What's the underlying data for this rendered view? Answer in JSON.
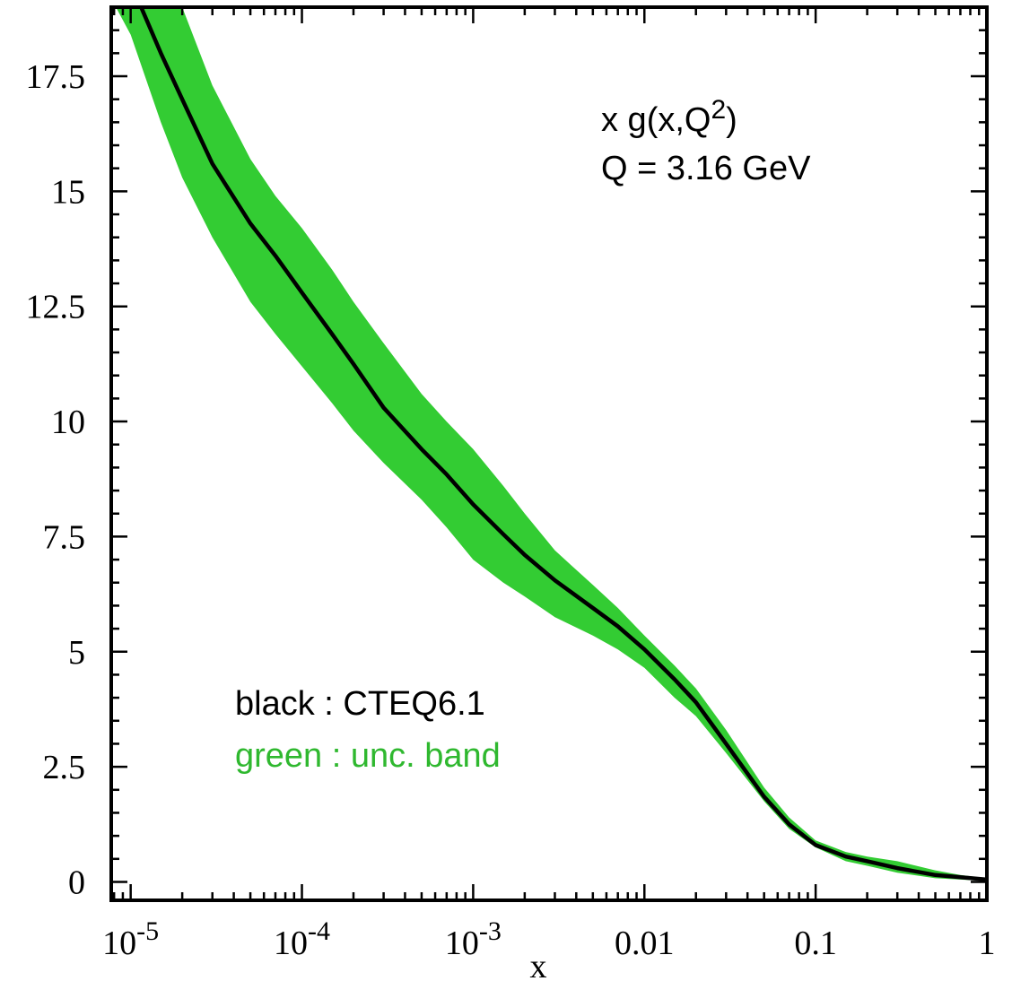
{
  "chart_data": {
    "type": "area",
    "title": "",
    "xlabel": "x",
    "ylabel": "",
    "x_scale": "log",
    "xlim": [
      7.7e-06,
      1.0
    ],
    "ylim": [
      -0.4,
      19.0
    ],
    "grid": false,
    "x_ticks": [
      {
        "value": 1e-05,
        "base": "10",
        "exp": "-5"
      },
      {
        "value": 0.0001,
        "base": "10",
        "exp": "-4"
      },
      {
        "value": 0.001,
        "base": "10",
        "exp": "-3"
      },
      {
        "value": 0.01,
        "label": "0.01"
      },
      {
        "value": 0.1,
        "label": "0.1"
      },
      {
        "value": 1,
        "label": "1"
      }
    ],
    "y_ticks": [
      {
        "value": 0,
        "label": "0"
      },
      {
        "value": 2.5,
        "label": "2.5"
      },
      {
        "value": 5,
        "label": "5"
      },
      {
        "value": 7.5,
        "label": "7.5"
      },
      {
        "value": 10,
        "label": "10"
      },
      {
        "value": 12.5,
        "label": "12.5"
      },
      {
        "value": 15,
        "label": "15"
      },
      {
        "value": 17.5,
        "label": "17.5"
      }
    ],
    "annotations": {
      "line1_prefix": "x g(x,Q",
      "line1_sup": "2",
      "line1_suffix": ")",
      "line2": "Q = 3.16 GeV",
      "legend_black": "black : CTEQ6.1",
      "legend_green": "green : unc. band"
    },
    "colors": {
      "central": "#000000",
      "band": "#33cc33",
      "legend_green": "#2fb82f"
    },
    "series": [
      {
        "kind": "line",
        "x": [
          1.15e-05,
          1.5e-05,
          2e-05,
          3e-05,
          5e-05,
          7e-05,
          0.0001,
          0.00015,
          0.0002,
          0.0003,
          0.0005,
          0.0007,
          0.001,
          0.0015,
          0.002,
          0.003,
          0.005,
          0.007,
          0.01,
          0.015,
          0.02,
          0.03,
          0.05,
          0.07,
          0.1,
          0.15,
          0.2,
          0.3,
          0.5,
          0.7,
          1.0
        ],
        "y": [
          19.0,
          18.0,
          17.0,
          15.6,
          14.3,
          13.6,
          12.8,
          11.9,
          11.25,
          10.3,
          9.4,
          8.85,
          8.2,
          7.55,
          7.1,
          6.55,
          5.95,
          5.55,
          5.05,
          4.4,
          3.9,
          3.0,
          1.85,
          1.25,
          0.8,
          0.55,
          0.45,
          0.3,
          0.15,
          0.1,
          0.05
        ]
      },
      {
        "kind": "band",
        "x": [
          8.2e-06,
          1e-05,
          1.5e-05,
          2e-05,
          3e-05,
          5e-05,
          7e-05,
          0.0001,
          0.00015,
          0.0002,
          0.0003,
          0.0005,
          0.0007,
          0.001,
          0.0015,
          0.002,
          0.003,
          0.005,
          0.007,
          0.01,
          0.015,
          0.02,
          0.03,
          0.05,
          0.07,
          0.1,
          0.15,
          0.2,
          0.3,
          0.5,
          0.7,
          1.0
        ],
        "lower": [
          19.0,
          18.4,
          16.5,
          15.3,
          14.0,
          12.6,
          11.9,
          11.2,
          10.4,
          9.8,
          9.1,
          8.3,
          7.7,
          7.0,
          6.5,
          6.2,
          5.75,
          5.35,
          5.05,
          4.65,
          4.0,
          3.6,
          2.8,
          1.75,
          1.15,
          0.75,
          0.45,
          0.35,
          0.2,
          0.08,
          0.05,
          0.02
        ],
        "upper": [
          19.0,
          19.0,
          19.0,
          19.0,
          17.3,
          15.7,
          14.9,
          14.2,
          13.3,
          12.6,
          11.7,
          10.6,
          10.0,
          9.4,
          8.6,
          8.0,
          7.2,
          6.45,
          5.95,
          5.35,
          4.7,
          4.2,
          3.3,
          2.05,
          1.4,
          0.9,
          0.65,
          0.55,
          0.45,
          0.25,
          0.15,
          0.08
        ]
      }
    ]
  }
}
